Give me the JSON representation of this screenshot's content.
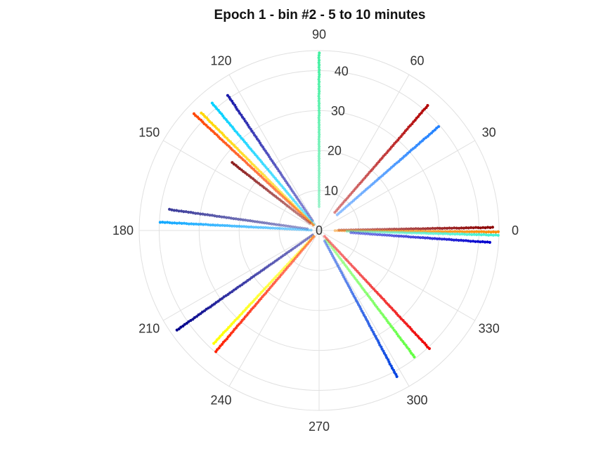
{
  "chart_data": {
    "type": "scatter",
    "projection": "polar",
    "title": "Epoch 1 - bin #2 - 5 to 10 minutes",
    "theta_unit": "degrees",
    "theta_ticks": [
      0,
      30,
      60,
      90,
      120,
      150,
      180,
      210,
      240,
      270,
      300,
      330
    ],
    "theta_tick_labels": [
      "0",
      "30",
      "60",
      "90",
      "120",
      "150",
      "180",
      "210",
      "240",
      "270",
      "300",
      "330"
    ],
    "r_lim": [
      0,
      45
    ],
    "r_ticks": [
      0,
      10,
      20,
      30,
      40
    ],
    "r_tick_labels": [
      "0",
      "10",
      "20",
      "30",
      "40"
    ],
    "r_label_angle": 85,
    "grid": true,
    "legend": "none",
    "series": [
      {
        "theta": 1,
        "r_range": [
          5,
          43.5
        ],
        "color": "#8b0000"
      },
      {
        "theta": 359.5,
        "r_range": [
          4,
          45
        ],
        "color": "#ff8c00"
      },
      {
        "theta": 358.5,
        "r_range": [
          7,
          45
        ],
        "color": "#40f0d0"
      },
      {
        "theta": 356,
        "r_range": [
          8,
          43
        ],
        "color": "#0000cd"
      },
      {
        "theta": 90,
        "r_range": [
          6,
          45
        ],
        "color": "#40f0a0"
      },
      {
        "theta": 49,
        "r_range": [
          6,
          42
        ],
        "color": "#b00000"
      },
      {
        "theta": 41,
        "r_range": [
          6,
          40
        ],
        "color": "#1e7fff"
      },
      {
        "theta": 124,
        "r_range": [
          3,
          41
        ],
        "color": "#1a1aaa"
      },
      {
        "theta": 130,
        "r_range": [
          2,
          42
        ],
        "color": "#00d0ff"
      },
      {
        "theta": 135,
        "r_range": [
          2,
          42
        ],
        "color": "#ffd700"
      },
      {
        "theta": 137,
        "r_range": [
          2,
          43
        ],
        "color": "#ff4500"
      },
      {
        "theta": 142,
        "r_range": [
          3,
          28
        ],
        "color": "#8b1a1a"
      },
      {
        "theta": 172,
        "r_range": [
          3,
          38
        ],
        "color": "#3a3a9a"
      },
      {
        "theta": 177,
        "r_range": [
          2,
          40
        ],
        "color": "#10a8ff"
      },
      {
        "theta": 215,
        "r_range": [
          2,
          44
        ],
        "color": "#00008b"
      },
      {
        "theta": 227,
        "r_range": [
          2,
          39
        ],
        "color": "#ffff00"
      },
      {
        "theta": 229.5,
        "r_range": [
          2,
          40
        ],
        "color": "#ff2000"
      },
      {
        "theta": 298,
        "r_range": [
          3,
          42
        ],
        "color": "#0040e0"
      },
      {
        "theta": 307,
        "r_range": [
          3,
          40
        ],
        "color": "#60ff40"
      },
      {
        "theta": 313,
        "r_range": [
          2,
          41
        ],
        "color": "#ee0000"
      }
    ]
  }
}
